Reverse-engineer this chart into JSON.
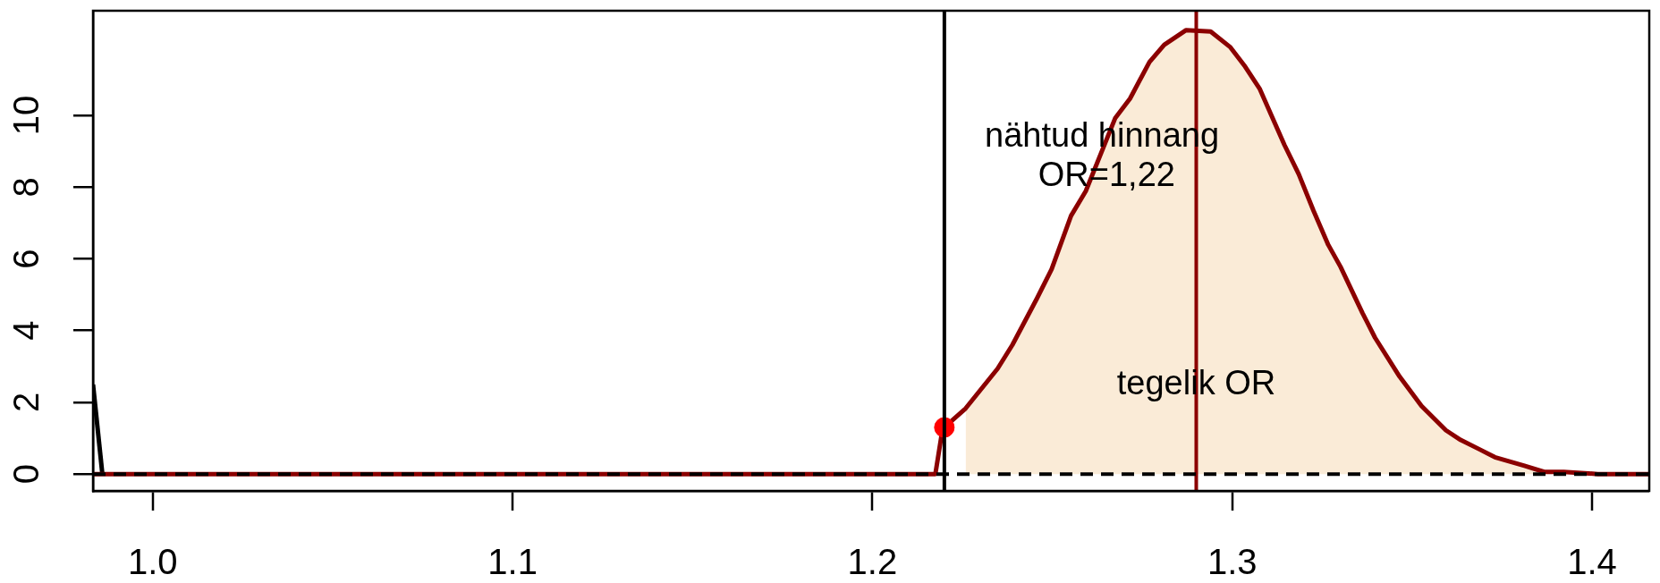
{
  "chart_data": {
    "type": "line",
    "xlim": [
      0.9834,
      1.4159
    ],
    "ylim": [
      -0.47,
      12.92
    ],
    "xticks": [
      {
        "value": 1,
        "label": "1.0"
      },
      {
        "value": 1.1,
        "label": "1.1"
      },
      {
        "value": 1.2,
        "label": "1.2"
      },
      {
        "value": 1.3,
        "label": "1.3"
      },
      {
        "value": 1.4,
        "label": "1.4"
      }
    ],
    "yticks": [
      0,
      2,
      4,
      6,
      8,
      10
    ],
    "marker": "none",
    "series": [
      {
        "type": "area",
        "color": "#faebd7",
        "x": [
          1.2259,
          1.2348,
          1.2389,
          1.2457,
          1.2498,
          1.2552,
          1.2593,
          1.2675,
          1.2716,
          1.277,
          1.2811,
          1.2872,
          1.294,
          1.2995,
          1.3036,
          1.3076,
          1.3145,
          1.3185,
          1.3226,
          1.3267,
          1.3301,
          1.3362,
          1.3397,
          1.3465,
          1.3526,
          1.3594,
          1.3635,
          1.3689,
          1.373,
          1.3812,
          1.3867,
          1.3921,
          1.4016,
          1.4159
        ],
        "values": [
          1.83,
          2.94,
          3.6,
          4.89,
          5.71,
          7.2,
          7.89,
          9.93,
          10.47,
          11.49,
          11.97,
          12.38,
          12.34,
          11.9,
          11.36,
          10.75,
          9.18,
          8.36,
          7.34,
          6.39,
          5.78,
          4.49,
          3.8,
          2.72,
          1.9,
          1.22,
          0.95,
          0.68,
          0.47,
          0.23,
          0.06,
          0.06,
          0,
          0
        ]
      },
      {
        "color": "#8b0000",
        "x": [
          0.9834,
          1.2175,
          1.2195,
          1.2259,
          1.2348,
          1.2389,
          1.2457,
          1.2498,
          1.2552,
          1.2593,
          1.2675,
          1.2716,
          1.277,
          1.2811,
          1.2872,
          1.294,
          1.2995,
          1.3036,
          1.3076,
          1.3145,
          1.3185,
          1.3226,
          1.3267,
          1.3301,
          1.3362,
          1.3397,
          1.3465,
          1.3526,
          1.3594,
          1.3635,
          1.3689,
          1.373,
          1.3812,
          1.3867,
          1.3921,
          1.4016,
          1.4159
        ],
        "values": [
          0,
          0,
          1.26,
          1.83,
          2.94,
          3.6,
          4.89,
          5.71,
          7.2,
          7.89,
          9.93,
          10.47,
          11.49,
          11.97,
          12.38,
          12.34,
          11.9,
          11.36,
          10.75,
          9.18,
          8.36,
          7.34,
          6.39,
          5.78,
          4.49,
          3.8,
          2.72,
          1.9,
          1.22,
          0.95,
          0.68,
          0.47,
          0.23,
          0.06,
          0.06,
          0,
          0
        ]
      },
      {
        "color": "#000000",
        "x": [
          0.9834,
          0.986
        ],
        "values": [
          2.5,
          0
        ]
      },
      {
        "type": "scatter",
        "color": "#ff0000",
        "marker": "circle",
        "x": [
          1.22
        ],
        "values": [
          1.3
        ]
      }
    ],
    "ref_lines": [
      {
        "axis": "x",
        "value": 1.22,
        "color": "#000000"
      },
      {
        "axis": "x",
        "value": 1.29,
        "color": "#8b0000",
        "label": "tegelik OR"
      },
      {
        "axis": "y",
        "value": 0,
        "color": "#000000",
        "line_style": "dashed"
      }
    ],
    "annotations": [
      {
        "text": "nähtud hinnang\n OR=1,22",
        "x": 1.2638,
        "y": 8.85
      }
    ]
  }
}
